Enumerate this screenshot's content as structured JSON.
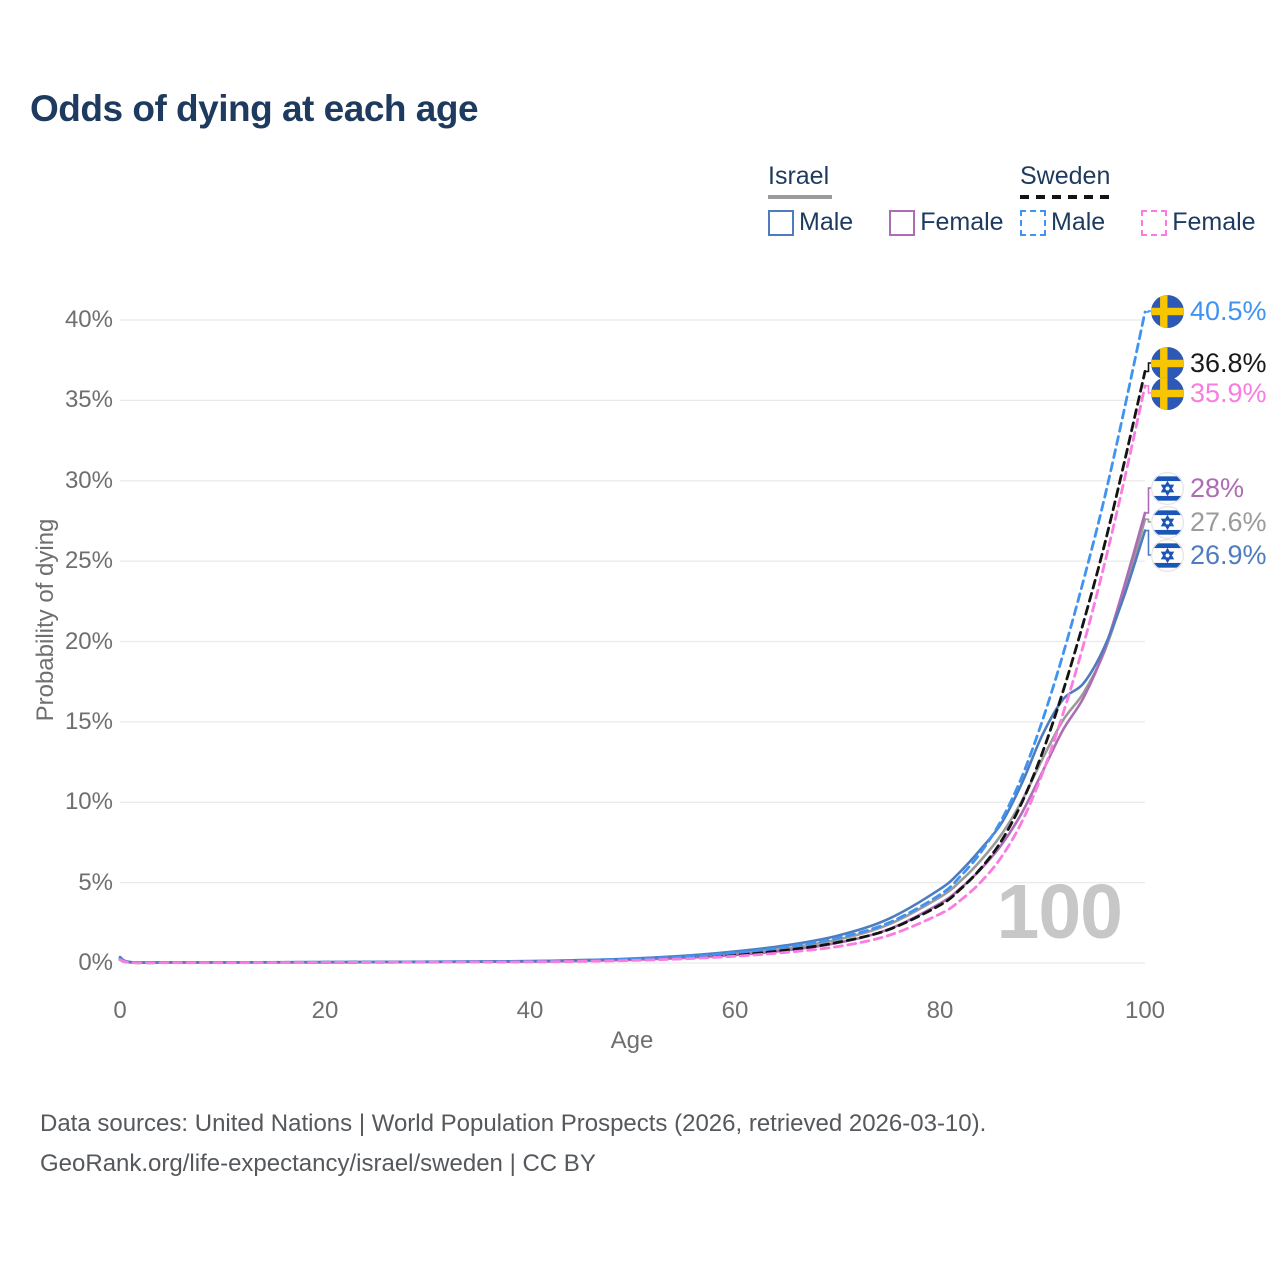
{
  "title": "Odds of dying at each age",
  "watermark_age": "100",
  "legend": {
    "groups": [
      {
        "title": "Israel",
        "line_style": "solid",
        "line_color": "#9b9b9b",
        "items": [
          {
            "label": "Male",
            "color": "#4e7cbe",
            "dash": false
          },
          {
            "label": "Female",
            "color": "#ad6cb4",
            "dash": false
          }
        ]
      },
      {
        "title": "Sweden",
        "line_style": "dashed",
        "line_color": "#141414",
        "items": [
          {
            "label": "Male",
            "color": "#3f93f2",
            "dash": true
          },
          {
            "label": "Female",
            "color": "#f97ce0",
            "dash": true
          }
        ]
      }
    ]
  },
  "chart_data": {
    "type": "line",
    "title": "Odds of dying at each age",
    "xlabel": "Age",
    "ylabel": "Probability of dying",
    "xlim": [
      0,
      100
    ],
    "ylim_pct": [
      0,
      40
    ],
    "x_ticks": [
      0,
      20,
      40,
      60,
      80,
      100
    ],
    "y_ticks_pct": [
      0,
      5,
      10,
      15,
      20,
      25,
      30,
      35,
      40
    ],
    "grid": "horizontal",
    "ages": [
      0,
      1,
      5,
      10,
      20,
      30,
      40,
      45,
      50,
      55,
      60,
      65,
      70,
      75,
      80,
      82,
      84,
      86,
      88,
      90,
      92,
      94,
      96,
      98,
      100
    ],
    "series": [
      {
        "id": "israel-total",
        "country": "Israel",
        "sex": "Total",
        "color": "#9b9b9b",
        "dash": false,
        "end_label": "27.6%",
        "values_pct": [
          0.32,
          0.05,
          0.03,
          0.03,
          0.05,
          0.07,
          0.1,
          0.15,
          0.23,
          0.37,
          0.6,
          0.92,
          1.45,
          2.4,
          4.1,
          5.1,
          6.4,
          8.0,
          10.1,
          12.7,
          15.1,
          16.8,
          19.3,
          23.1,
          27.6
        ]
      },
      {
        "id": "israel-female",
        "country": "Israel",
        "sex": "Female",
        "color": "#ad6cb4",
        "dash": false,
        "end_label": "28%",
        "values_pct": [
          0.28,
          0.04,
          0.03,
          0.03,
          0.04,
          0.06,
          0.09,
          0.13,
          0.2,
          0.31,
          0.5,
          0.78,
          1.25,
          2.1,
          3.7,
          4.65,
          5.85,
          7.35,
          9.35,
          11.9,
          14.5,
          16.5,
          19.4,
          23.5,
          28.0
        ]
      },
      {
        "id": "israel-male",
        "country": "Israel",
        "sex": "Male",
        "color": "#4e7cbe",
        "dash": false,
        "end_label": "26.9%",
        "values_pct": [
          0.37,
          0.06,
          0.04,
          0.04,
          0.06,
          0.08,
          0.12,
          0.18,
          0.28,
          0.45,
          0.72,
          1.1,
          1.7,
          2.75,
          4.6,
          5.7,
          7.1,
          8.7,
          11.2,
          14.2,
          16.4,
          17.4,
          19.6,
          22.9,
          26.9
        ]
      },
      {
        "id": "sweden-total",
        "country": "Sweden",
        "sex": "Total",
        "color": "#141414",
        "dash": true,
        "end_label": "36.8%",
        "values_pct": [
          0.22,
          0.035,
          0.025,
          0.025,
          0.04,
          0.06,
          0.085,
          0.13,
          0.2,
          0.32,
          0.52,
          0.8,
          1.28,
          2.08,
          3.6,
          4.6,
          5.9,
          7.6,
          10.0,
          13.1,
          16.9,
          21.2,
          25.9,
          31.2,
          36.8
        ]
      },
      {
        "id": "sweden-male",
        "country": "Sweden",
        "sex": "Male",
        "color": "#3f93f2",
        "dash": true,
        "end_label": "40.5%",
        "values_pct": [
          0.25,
          0.04,
          0.03,
          0.03,
          0.05,
          0.07,
          0.1,
          0.16,
          0.25,
          0.4,
          0.64,
          1.0,
          1.55,
          2.5,
          4.25,
          5.4,
          6.9,
          8.9,
          11.6,
          15.1,
          19.2,
          23.8,
          28.8,
          34.5,
          40.5
        ]
      },
      {
        "id": "sweden-female",
        "country": "Sweden",
        "sex": "Female",
        "color": "#f97ce0",
        "dash": true,
        "end_label": "35.9%",
        "values_pct": [
          0.2,
          0.03,
          0.02,
          0.02,
          0.03,
          0.05,
          0.07,
          0.1,
          0.16,
          0.26,
          0.42,
          0.66,
          1.02,
          1.72,
          3.05,
          3.9,
          5.05,
          6.6,
          8.8,
          11.8,
          15.5,
          19.8,
          24.7,
          30.1,
          35.9
        ]
      }
    ],
    "end_label_order": [
      "sweden-male",
      "sweden-total",
      "sweden-female",
      "israel-female",
      "israel-total",
      "israel-male"
    ],
    "end_label_text_colors": {
      "sweden-male": "#3f93f2",
      "sweden-total": "#1a1a1a",
      "sweden-female": "#f97ce0",
      "israel-female": "#ad6cb4",
      "israel-total": "#9b9b9b",
      "israel-male": "#4e7cbe"
    }
  },
  "footer": {
    "line1": "Data sources: United Nations | World Population Prospects (2026, retrieved 2026-03-10).",
    "line2": "GeoRank.org/life-expectancy/israel/sweden | CC BY"
  }
}
